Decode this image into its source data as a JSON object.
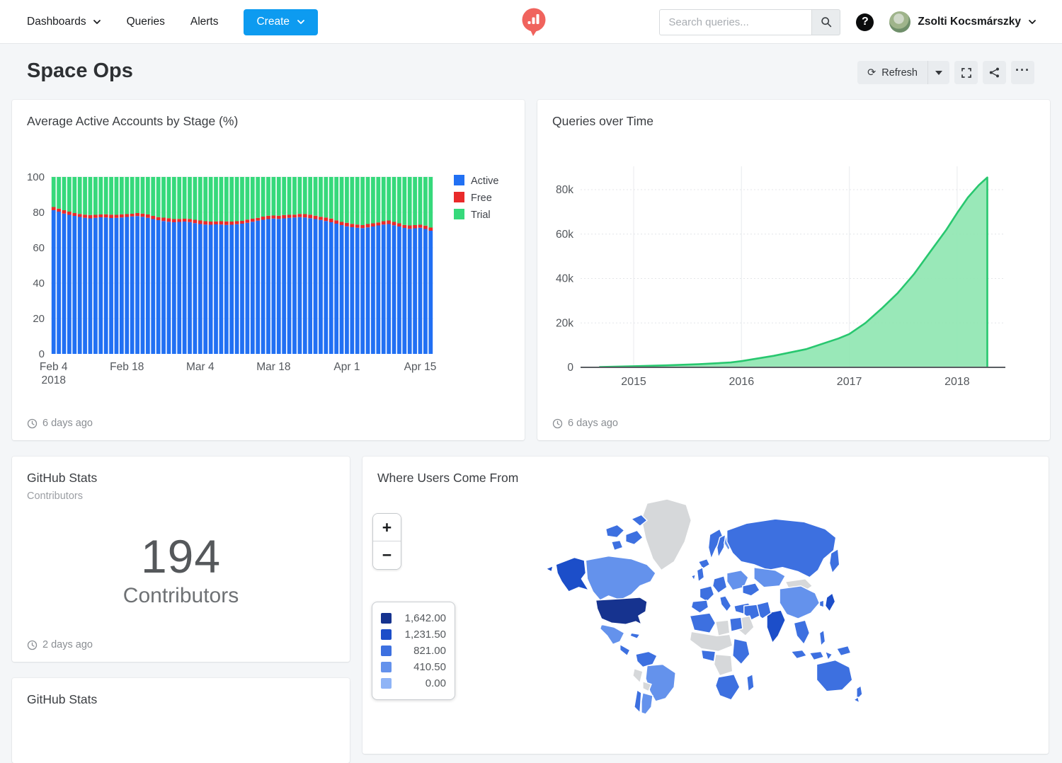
{
  "navbar": {
    "items": [
      {
        "label": "Dashboards"
      },
      {
        "label": "Queries"
      },
      {
        "label": "Alerts"
      }
    ],
    "create_label": "Create",
    "search_placeholder": "Search queries...",
    "help_glyph": "?",
    "user_name": "Zsolti Kocsmárszky",
    "create_color": "#0d9bf0",
    "logo_color": "#f0635d"
  },
  "header": {
    "title": "Space Ops",
    "refresh_label": "Refresh",
    "refresh_icon": "⟳",
    "ellipsis": "···"
  },
  "panels": {
    "stage": {
      "title": "Average Active Accounts by Stage (%)",
      "updated": "6 days ago"
    },
    "queries": {
      "title": "Queries over Time",
      "updated": "6 days ago"
    },
    "github": {
      "title": "GitHub Stats",
      "subtitle": "Contributors",
      "value": "194",
      "value_label": "Contributors",
      "updated": "2 days ago"
    },
    "map": {
      "title": "Where Users Come From",
      "zoom_in": "+",
      "zoom_out": "−",
      "legend": [
        {
          "value": "1,642.00",
          "color": "#16338f"
        },
        {
          "value": "1,231.50",
          "color": "#1c4ec9"
        },
        {
          "value": "821.00",
          "color": "#3d70e0"
        },
        {
          "value": "410.50",
          "color": "#6492ec"
        },
        {
          "value": "0.00",
          "color": "#8fb4f6"
        }
      ]
    },
    "github2": {
      "title": "GitHub Stats"
    }
  },
  "chart_data": [
    {
      "type": "bar",
      "title": "Average Active Accounts by Stage (%)",
      "stacked": true,
      "x_start": "Feb 4 2018",
      "x_end": "Apr 17 2018",
      "tick_indices": [
        0,
        14,
        28,
        42,
        56,
        70
      ],
      "tick_labels": [
        "Feb 4",
        "Feb 18",
        "Mar 4",
        "Mar 18",
        "Apr 1",
        "Apr 15"
      ],
      "tick_sublabel": "2018",
      "ylim": [
        0,
        100
      ],
      "yticks": [
        0,
        20,
        40,
        60,
        80,
        100
      ],
      "legend_position": "right",
      "series": [
        {
          "name": "Active",
          "color": "#2170f3",
          "values": [
            81.2,
            80.4,
            79.3,
            78.6,
            78.0,
            77.4,
            76.9,
            76.6,
            76.9,
            77.2,
            77.1,
            76.8,
            76.9,
            77.1,
            77.4,
            77.7,
            77.9,
            77.5,
            76.9,
            76.2,
            75.6,
            75.1,
            74.7,
            74.4,
            74.6,
            74.8,
            74.5,
            73.9,
            73.4,
            73.1,
            73.0,
            73.2,
            73.1,
            72.9,
            73.0,
            73.3,
            73.6,
            74.1,
            74.7,
            75.3,
            75.8,
            76.2,
            76.5,
            76.3,
            76.6,
            76.9,
            77.1,
            77.3,
            77.1,
            76.7,
            76.2,
            75.7,
            75.1,
            74.4,
            73.6,
            72.8,
            72.1,
            71.6,
            71.3,
            71.1,
            71.5,
            72.0,
            72.6,
            73.1,
            73.4,
            72.7,
            72.0,
            71.2,
            70.7,
            71.0,
            71.3,
            70.6,
            69.6
          ]
        },
        {
          "name": "Free",
          "color": "#e92a2a",
          "values": [
            1.8,
            1.7,
            1.9,
            1.8,
            1.6,
            1.7,
            1.8,
            1.9,
            1.7,
            1.6,
            1.8,
            1.9,
            1.7,
            1.8,
            1.6,
            1.5,
            1.7,
            1.8,
            1.9,
            1.8,
            1.7,
            1.9,
            2.0,
            1.8,
            1.7,
            1.6,
            1.8,
            1.9,
            2.0,
            1.9,
            1.8,
            1.7,
            1.9,
            2.0,
            1.8,
            1.7,
            1.6,
            1.8,
            1.7,
            1.6,
            1.8,
            1.9,
            1.7,
            1.8,
            1.9,
            1.7,
            1.6,
            1.8,
            1.9,
            2.0,
            1.9,
            1.8,
            2.0,
            2.1,
            1.9,
            1.8,
            2.0,
            1.9,
            1.8,
            1.7,
            1.9,
            1.8,
            1.7,
            1.9,
            2.0,
            1.9,
            1.8,
            1.7,
            1.9,
            1.8,
            1.7,
            1.9,
            1.8
          ]
        },
        {
          "name": "Trial",
          "color": "#36d97b",
          "values": [
            17.0,
            17.9,
            18.8,
            19.6,
            20.4,
            20.9,
            21.3,
            21.5,
            21.4,
            21.2,
            21.1,
            21.3,
            21.4,
            21.1,
            21.0,
            20.8,
            20.4,
            20.7,
            21.2,
            22.0,
            22.7,
            23.0,
            23.3,
            23.8,
            23.7,
            23.6,
            23.7,
            24.2,
            24.6,
            25.0,
            25.2,
            25.1,
            25.0,
            25.1,
            25.2,
            25.0,
            24.8,
            24.1,
            23.6,
            23.1,
            22.4,
            21.9,
            21.8,
            21.9,
            21.5,
            21.4,
            21.3,
            20.9,
            21.0,
            21.3,
            21.9,
            22.5,
            22.9,
            23.5,
            24.5,
            25.4,
            25.9,
            26.5,
            26.9,
            27.2,
            26.6,
            26.2,
            25.7,
            25.0,
            24.6,
            25.4,
            26.2,
            27.1,
            27.4,
            27.2,
            27.0,
            27.5,
            28.6
          ]
        }
      ]
    },
    {
      "type": "area",
      "title": "Queries over Time",
      "line_color": "#28c76f",
      "fill_color": "#8ee6b0",
      "xticks": [
        2015,
        2016,
        2017,
        2018
      ],
      "ytick_labels": [
        "0",
        "20k",
        "40k",
        "60k",
        "80k"
      ],
      "ytick_values": [
        0,
        20000,
        40000,
        60000,
        80000
      ],
      "ylim": [
        0,
        90000
      ],
      "grid": true,
      "points": [
        [
          2014.68,
          150
        ],
        [
          2015.0,
          500
        ],
        [
          2015.3,
          900
        ],
        [
          2015.6,
          1400
        ],
        [
          2015.9,
          2200
        ],
        [
          2016.0,
          2800
        ],
        [
          2016.3,
          5200
        ],
        [
          2016.6,
          8200
        ],
        [
          2016.9,
          13000
        ],
        [
          2017.0,
          15000
        ],
        [
          2017.15,
          20000
        ],
        [
          2017.3,
          26500
        ],
        [
          2017.45,
          33500
        ],
        [
          2017.6,
          42000
        ],
        [
          2017.75,
          52000
        ],
        [
          2017.9,
          62000
        ],
        [
          2018.0,
          69500
        ],
        [
          2018.1,
          76500
        ],
        [
          2018.2,
          82000
        ],
        [
          2018.28,
          85500
        ]
      ]
    },
    {
      "type": "counter",
      "title": "GitHub Stats",
      "value": 194,
      "label": "Contributors"
    },
    {
      "type": "choropleth",
      "title": "Where Users Come From",
      "legend_values": [
        1642.0,
        1231.5,
        821.0,
        410.5,
        0.0
      ],
      "legend_colors": [
        "#16338f",
        "#1c4ec9",
        "#3d70e0",
        "#6492ec",
        "#8fb4f6"
      ],
      "no_data_color": "#d6d8da",
      "regions": {
        "usa": 0,
        "alaska": 1,
        "aleutian": 1,
        "canada": 3,
        "canadian-islands-a": 2,
        "canadian-islands-b": 2,
        "canadian-islands-c": 2,
        "canadian-islands-d": 2,
        "greenland": "na",
        "iceland": 2,
        "mexico": 3,
        "central-america": 2,
        "cuba": 2,
        "colombia": 2,
        "peru": "na",
        "brazil": 3,
        "bolivia": "na",
        "chile": 2,
        "argentina": 3,
        "uk": 2,
        "ireland": 2,
        "norway": 2,
        "sweden": 2,
        "finland": 3,
        "france": 2,
        "spain": 2,
        "germany": 2,
        "italy": 2,
        "eastern-europe": 3,
        "ukraine": 2,
        "turkey": 2,
        "russia": 2,
        "kamchatka": 2,
        "kazakhstan": 3,
        "mongolia": "na",
        "china": 3,
        "india": 1,
        "pakistan": 2,
        "iran": 2,
        "saudi": "na",
        "nw-africa": 2,
        "libya": "na",
        "egypt": 2,
        "sahel": "na",
        "nigeria": 2,
        "congo": "na",
        "east-africa": 2,
        "southern-africa": 2,
        "madagascar": 2,
        "se-asia": 2,
        "indonesia-a": 2,
        "indonesia-b": 2,
        "indonesia-c": 2,
        "philippines": 2,
        "japan": 1,
        "korea": 2,
        "new-guinea": 2,
        "australia": 2,
        "new-zealand-a": 2,
        "new-zealand-b": 2
      }
    }
  ]
}
